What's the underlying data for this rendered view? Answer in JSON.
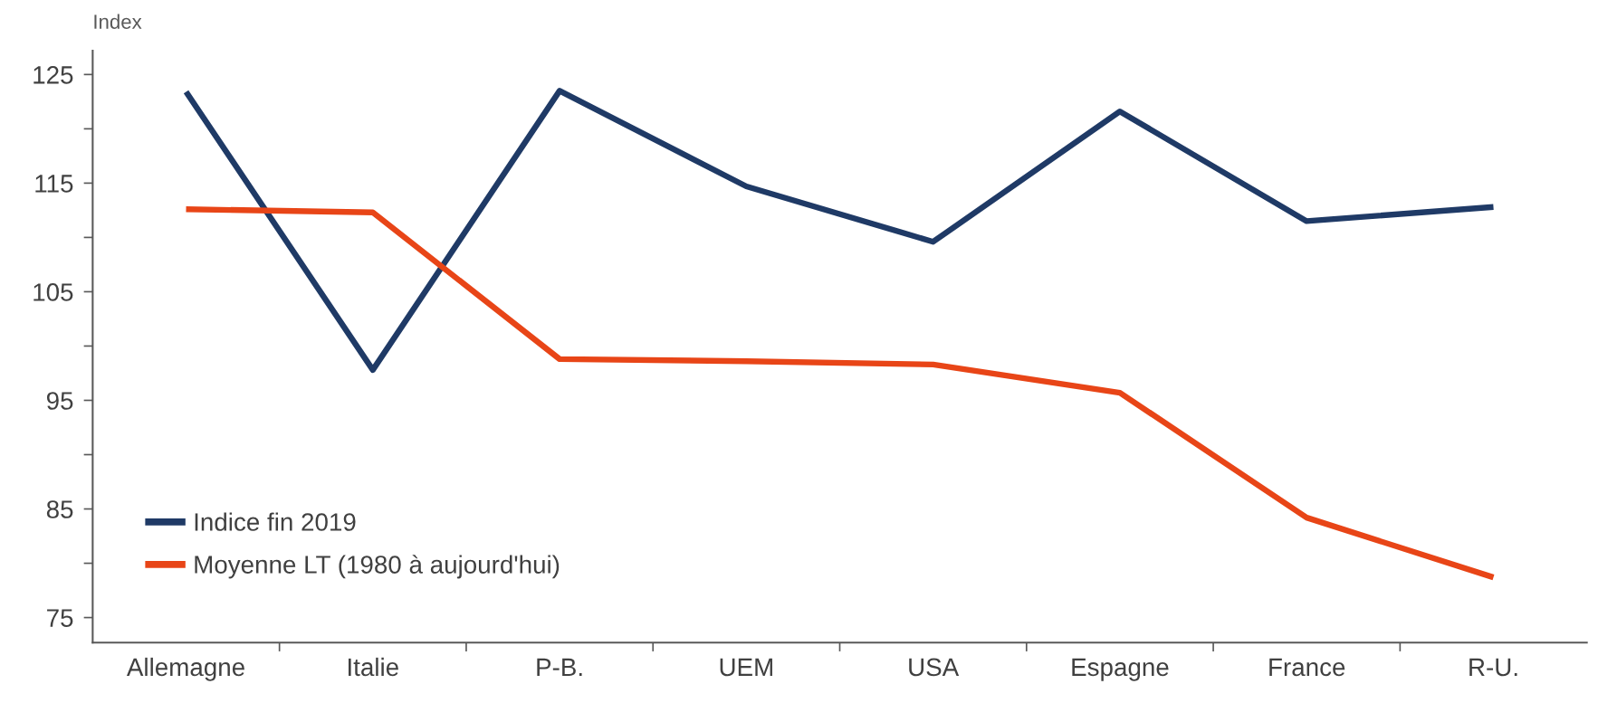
{
  "chart_data": {
    "type": "line",
    "ylabel": "Index",
    "categories": [
      "Allemagne",
      "Italie",
      "P-B.",
      "UEM",
      "USA",
      "Espagne",
      "France",
      "R-U."
    ],
    "series": [
      {
        "name": "Indice fin 2019",
        "color": "#1f3a66",
        "values": [
          123.4,
          97.8,
          123.5,
          114.7,
          109.6,
          121.6,
          111.5,
          112.8
        ]
      },
      {
        "name": "Moyenne LT (1980 à aujourd'hui)",
        "color": "#e84517",
        "values": [
          112.6,
          112.3,
          98.8,
          98.6,
          98.3,
          95.7,
          84.2,
          78.7
        ]
      }
    ],
    "ylim": [
      72.7,
      127.2
    ],
    "yticks": [
      75,
      {
        "value": 80,
        "label": null
      },
      85,
      {
        "value": 90,
        "label": null
      },
      95,
      {
        "value": 100,
        "label": null
      },
      105,
      {
        "value": 110,
        "label": null
      },
      115,
      {
        "value": 120,
        "label": null
      },
      125
    ],
    "grid": false,
    "legend": "bottom left",
    "marker": "none",
    "line_style": "solid"
  }
}
